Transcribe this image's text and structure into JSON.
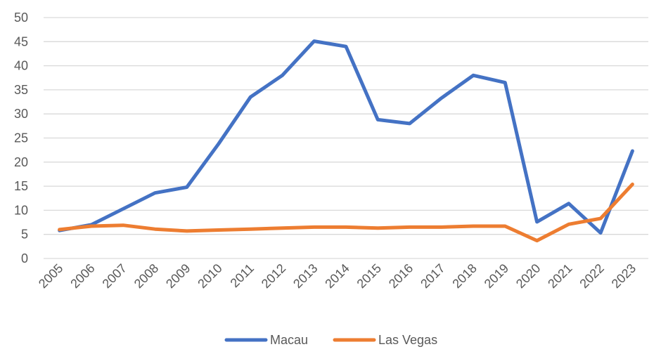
{
  "chart_data": {
    "type": "line",
    "title": "",
    "xlabel": "",
    "ylabel": "",
    "x": [
      "2005",
      "2006",
      "2007",
      "2008",
      "2009",
      "2010",
      "2011",
      "2012",
      "2013",
      "2014",
      "2015",
      "2016",
      "2017",
      "2018",
      "2019",
      "2020",
      "2021",
      "2022",
      "2023"
    ],
    "ylim": [
      0,
      50
    ],
    "yticks": [
      "0",
      "5",
      "10",
      "15",
      "20",
      "25",
      "30",
      "35",
      "40",
      "45",
      "50"
    ],
    "grid": "horizontal",
    "legend": "bottom-center",
    "series": [
      {
        "name": "Macau",
        "color": "#4472C4",
        "values": [
          5.8,
          7.0,
          10.3,
          13.6,
          14.8,
          23.8,
          33.5,
          38.0,
          45.1,
          44.0,
          28.8,
          28.0,
          33.3,
          38.0,
          36.5,
          7.6,
          11.4,
          5.3,
          22.3
        ]
      },
      {
        "name": "Las Vegas",
        "color": "#ED7D31",
        "values": [
          6.0,
          6.7,
          6.9,
          6.1,
          5.7,
          5.9,
          6.1,
          6.3,
          6.5,
          6.5,
          6.3,
          6.5,
          6.5,
          6.7,
          6.7,
          3.7,
          7.1,
          8.3,
          15.4
        ]
      }
    ]
  }
}
